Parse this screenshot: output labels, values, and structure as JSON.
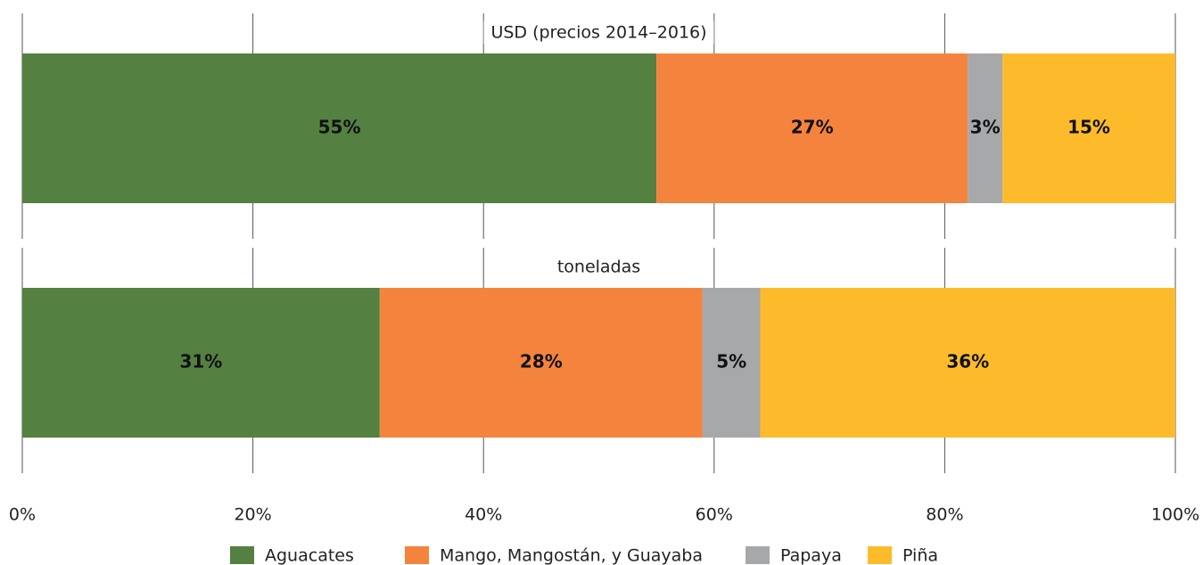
{
  "chart_data": {
    "type": "bar",
    "orientation": "horizontal",
    "stacked": true,
    "categories": [
      "USD (precios 2014–2016)",
      "toneladas"
    ],
    "series": [
      {
        "name": "Aguacates",
        "color": "#548041",
        "values": [
          55,
          31
        ],
        "value_labels": [
          "55%",
          "31%"
        ]
      },
      {
        "name": "Mango, Mangostán, y Guayaba",
        "color": "#f4843d",
        "values": [
          27,
          28
        ],
        "value_labels": [
          "27%",
          "28%"
        ]
      },
      {
        "name": "Papaya",
        "color": "#a7a8aa",
        "values": [
          3,
          5
        ],
        "value_labels": [
          "3%",
          "5%"
        ]
      },
      {
        "name": "Piña",
        "color": "#fdbb2c",
        "values": [
          15,
          36
        ],
        "value_labels": [
          "15%",
          "36%"
        ]
      }
    ],
    "xlim": [
      0,
      100
    ],
    "xticks": [
      {
        "value": 0,
        "label": "0%"
      },
      {
        "value": 20,
        "label": "20%"
      },
      {
        "value": 40,
        "label": "40%"
      },
      {
        "value": 60,
        "label": "60%"
      },
      {
        "value": 80,
        "label": "80%"
      },
      {
        "value": 100,
        "label": "100%"
      }
    ],
    "grid": true,
    "legend": "bottom"
  }
}
